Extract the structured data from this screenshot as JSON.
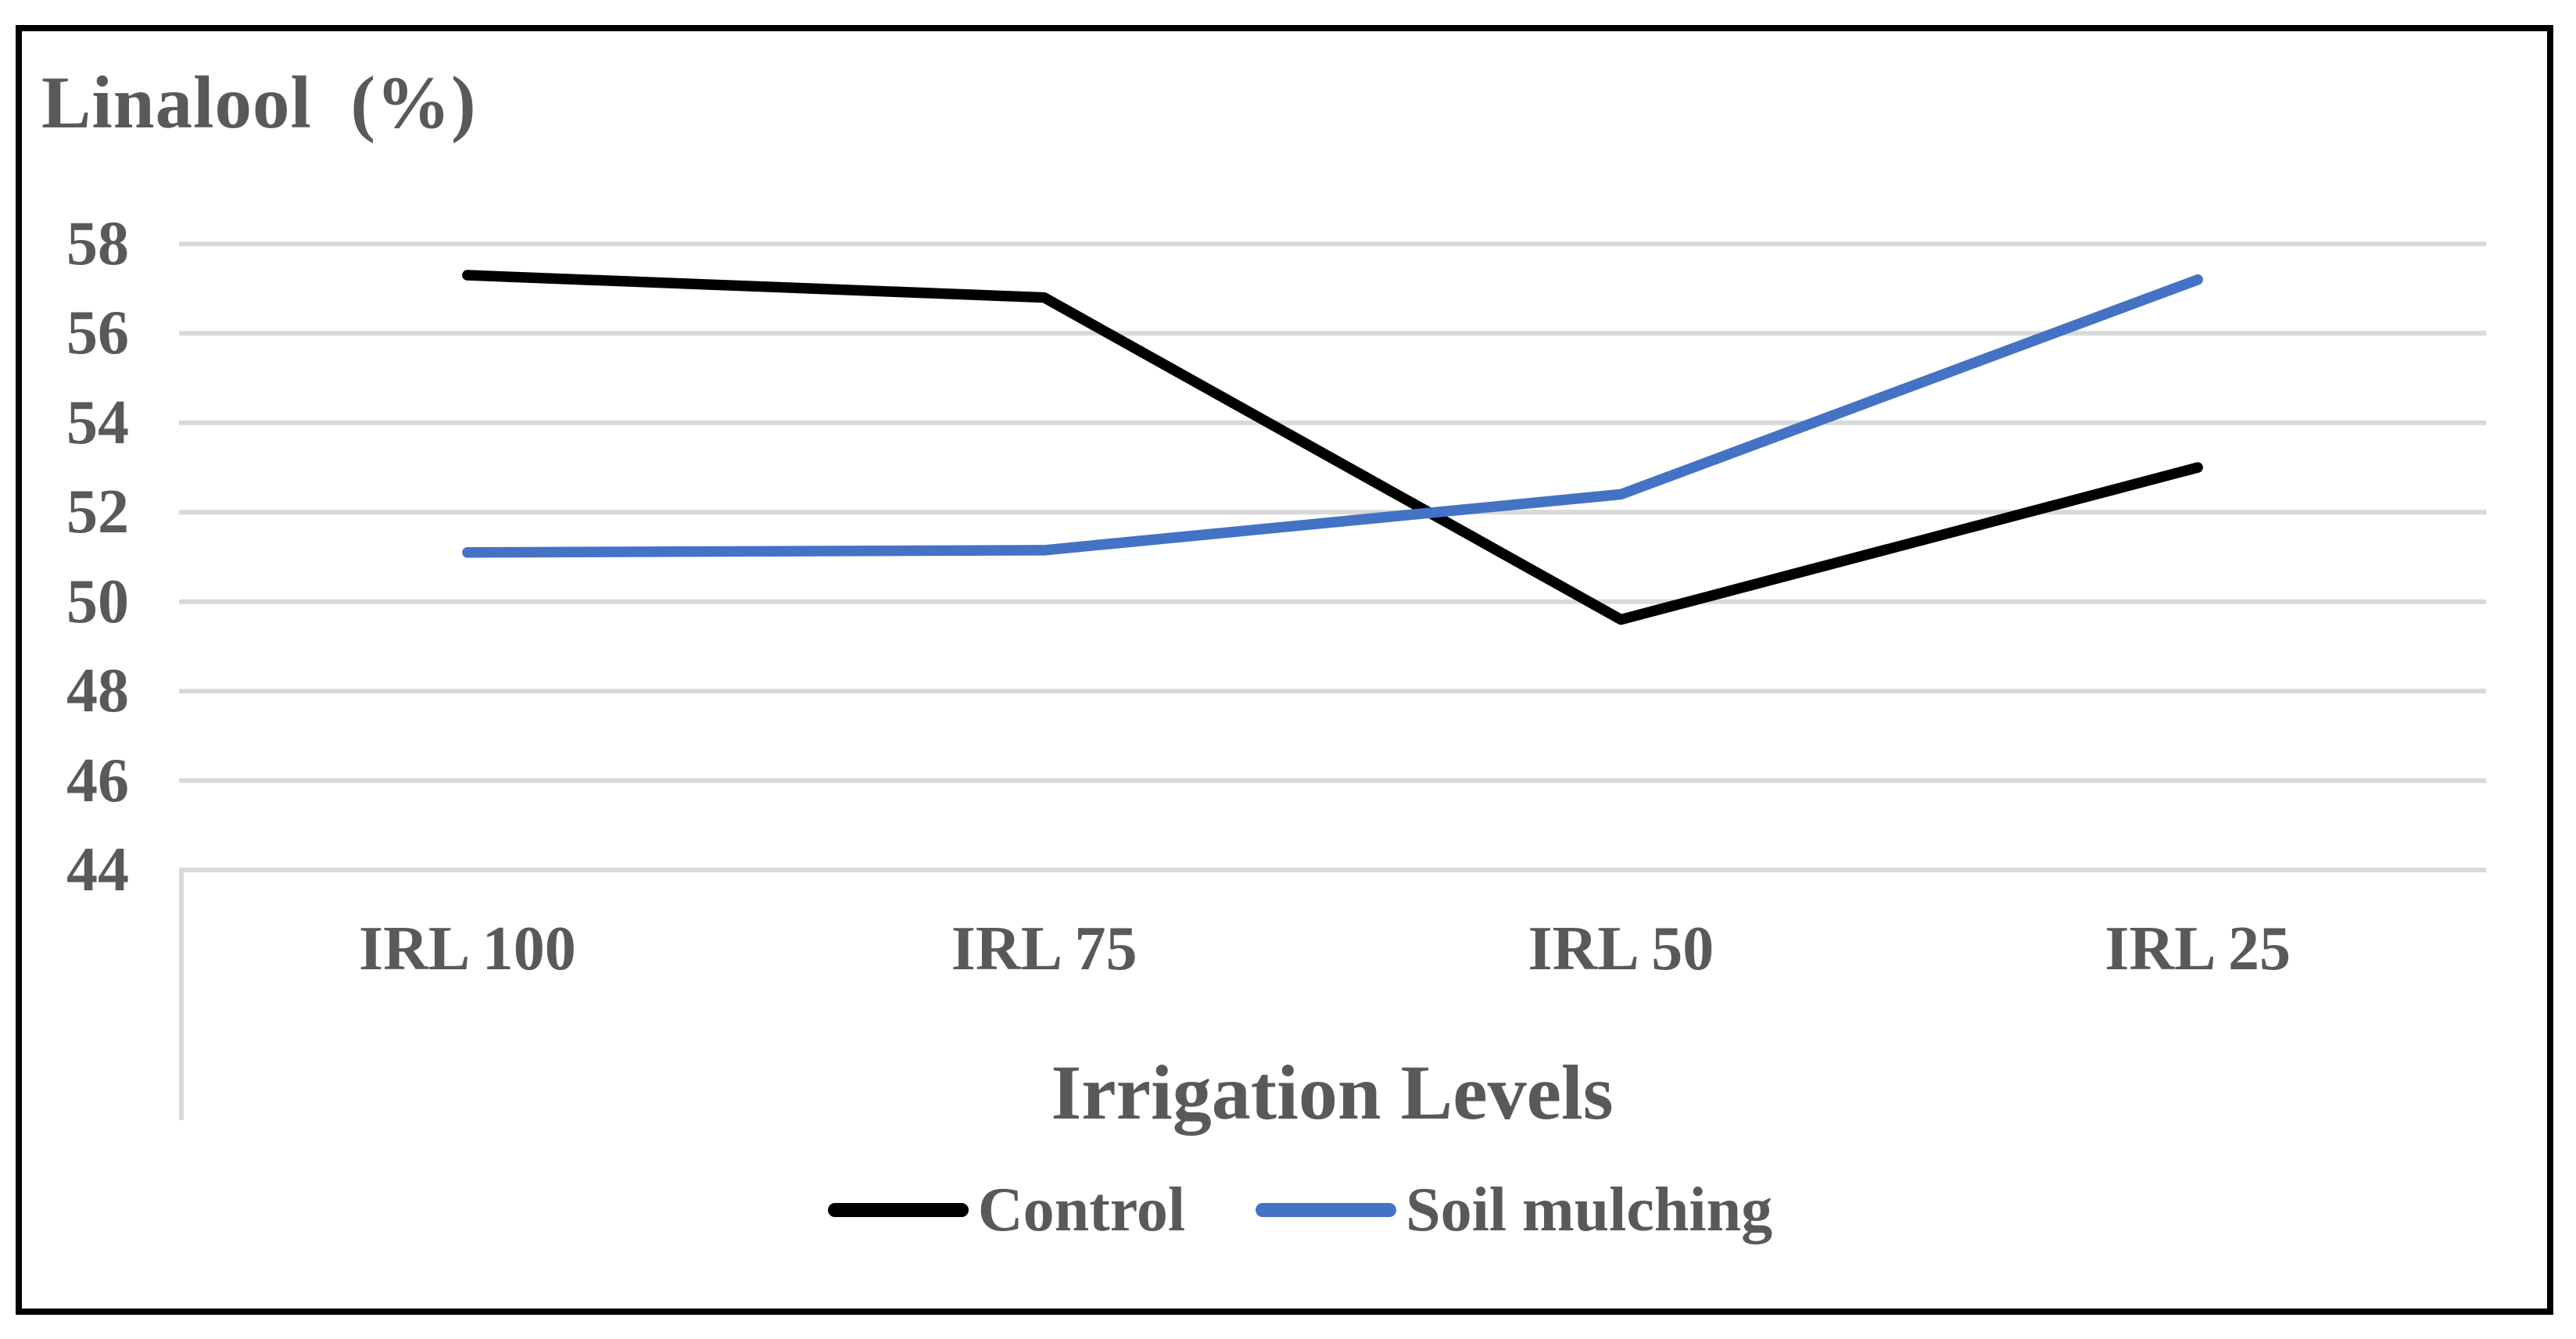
{
  "figure": {
    "title_display": "Linalool  (%)",
    "background": "#FFFFFF",
    "border_color": "#000000"
  },
  "chart_data": {
    "type": "line",
    "title": "Linalool (%)",
    "xlabel": "Irrigation Levels",
    "ylabel": "Linalool (%)",
    "categories": [
      "IRL 100",
      "IRL 75",
      "IRL 50",
      "IRL 25"
    ],
    "series": [
      {
        "name": "Control",
        "color": "#000000",
        "values": [
          57.3,
          56.8,
          49.6,
          53.0
        ]
      },
      {
        "name": "Soil mulching",
        "color": "#4472C4",
        "values": [
          51.1,
          51.15,
          52.4,
          57.2
        ]
      }
    ],
    "ylim": [
      44,
      58
    ],
    "yticks": [
      58,
      56,
      54,
      52,
      50,
      48,
      46,
      44
    ],
    "grid": true,
    "gridline_color": "#D9D9D9",
    "axis_line_color": "#D9D9D9",
    "label_color": "#595959",
    "legend_position": "bottom"
  }
}
